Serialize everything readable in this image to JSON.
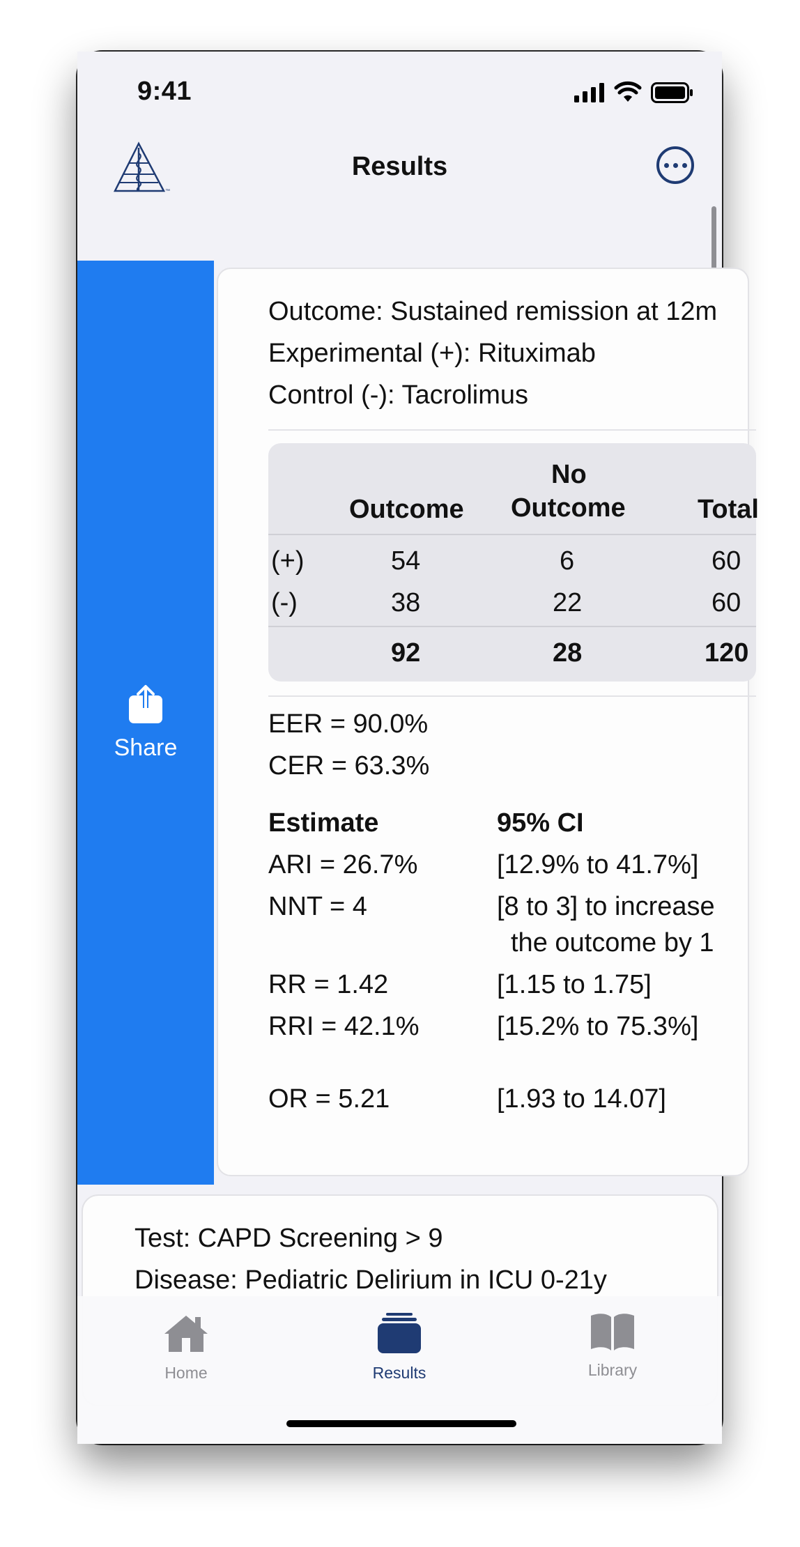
{
  "status": {
    "time": "9:41"
  },
  "nav": {
    "title": "Results"
  },
  "share": {
    "label": "Share"
  },
  "result": {
    "outcome": "Outcome: Sustained remission at 12m",
    "experimental": "Experimental (+): Rituximab",
    "control": "Control (-): Tacrolimus",
    "table": {
      "headers": {
        "outcome": "Outcome",
        "no_outcome_1": "No",
        "no_outcome_2": "Outcome",
        "total": "Total"
      },
      "rows": [
        {
          "label": "(+)",
          "outcome": "54",
          "no_outcome": "6",
          "total": "60"
        },
        {
          "label": "(-)",
          "outcome": "38",
          "no_outcome": "22",
          "total": "60"
        }
      ],
      "totals": {
        "outcome": "92",
        "no_outcome": "28",
        "total": "120"
      }
    },
    "eer": "EER = 90.0%",
    "cer": "CER = 63.3%",
    "estimate_header": "Estimate",
    "ci_header": "95% CI",
    "stats": [
      {
        "estimate": "ARI = 26.7%",
        "ci": "[12.9% to 41.7%]"
      },
      {
        "estimate": "NNT = 4",
        "ci": "[8 to 3] to increase",
        "ci2": "the outcome by 1"
      },
      {
        "estimate": "RR = 1.42",
        "ci": "[1.15 to 1.75]"
      },
      {
        "estimate": "RRI = 42.1%",
        "ci": "[15.2% to 75.3%]"
      },
      {
        "estimate": "OR = 5.21",
        "ci": "[1.93 to 14.07]"
      }
    ]
  },
  "next_card": {
    "test": "Test: CAPD Screening > 9",
    "disease": "Disease: Pediatric Delirium in ICU 0-21y"
  },
  "tabs": [
    {
      "label": "Home",
      "icon": "house-icon",
      "active": false
    },
    {
      "label": "Results",
      "icon": "stack-icon",
      "active": true
    },
    {
      "label": "Library",
      "icon": "book-icon",
      "active": false
    }
  ],
  "colors": {
    "accent": "#1f7cf0",
    "brand": "#1f3b73",
    "inactive": "#8e8e93"
  }
}
